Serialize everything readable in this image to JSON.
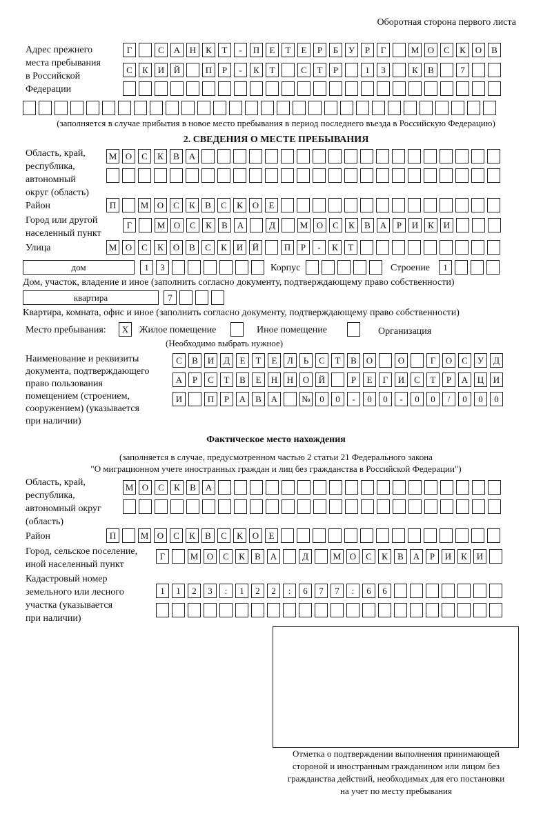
{
  "header": "Оборотная сторона первого листа",
  "prev_address": {
    "label": [
      "Адрес прежнего",
      "места пребывания",
      "в Российской",
      "Федерации"
    ],
    "rows": [
      "Г САНКТ-ПЕТЕРБУРГ МОСКОВ",
      "СКИЙ ПР-КТ СТР 13 КВ 7  ",
      "                        ",
      "                              "
    ],
    "note": "(заполняется в случае прибытия в новое место пребывания в период последнего въезда в Российскую Федерацию)"
  },
  "section2": {
    "title": "2. СВЕДЕНИЯ О МЕСТЕ ПРЕБЫВАНИЯ",
    "region_label": [
      "Область, край,",
      "республика,",
      "автономный",
      "округ (область)"
    ],
    "region_rows": [
      "МОСКВА                   ",
      "                         "
    ],
    "district_label": "Район",
    "district_row": "П МОСКВСКОЕ              ",
    "city_label": [
      "Город или другой",
      "населенный пункт"
    ],
    "city_row": "Г МОСКВА Д МОСКВАРИКИ   ",
    "street_label": "Улица",
    "street_row": "МОСКОВСКИЙ ПР-КТ         ",
    "house_type": "дом",
    "house_row": "13      ",
    "korpus_label": "Корпус",
    "korpus_row": "     ",
    "building_label": "Строение",
    "building_row": "1   ",
    "house_caption": "Дом, участок, владение и иное (заполнить согласно документу, подтверждающему право собственности)",
    "flat_type": "квартира",
    "flat_row": "7   ",
    "flat_caption": "Квартира, комната, офис и иное (заполнить согласно документу, подтверждающему право собственности)",
    "stay_label": "Место пребывания:",
    "stay_options": [
      {
        "label": "Жилое помещение",
        "mark": "X"
      },
      {
        "label": "Иное помещение",
        "mark": ""
      },
      {
        "label": "Организация",
        "mark": ""
      }
    ],
    "stay_note": "(Необходимо выбрать нужное)",
    "doc_label": [
      "Наименование и реквизиты",
      "документа, подтверждающего",
      "право пользования",
      "помещением (строением,",
      "сооружением) (указывается",
      "при наличии)"
    ],
    "doc_rows": [
      "СВИДЕТЕЛЬСТВО О ГОСУД",
      "АРСТВЕННОЙ РЕГИСТРАЦИ",
      "И ПРАВА №00-00-00/000"
    ]
  },
  "actual": {
    "title": "Фактическое место нахождения",
    "note": [
      "(заполняется в случае, предусмотренном частью 2 статьи 21 Федерального закона",
      "\"О миграционном учете иностранных граждан и лиц без гражданства в Российской Федерации\")"
    ],
    "region_label": [
      "Область, край,",
      "республика,",
      "автономный округ",
      "(область)"
    ],
    "region_rows": [
      "МОСКВА                  ",
      "                        "
    ],
    "district_label": "Район",
    "district_row": "П МОСКВСКОЕ              ",
    "city_label": [
      "Город, сельское поселение,",
      "иной населенный пункт"
    ],
    "city_row": "Г МОСКВА Д МОСКВАРИКИ ",
    "cadastre_label": [
      "Кадастровый номер",
      "земельного или лесного",
      "участка (указывается",
      "при наличии)"
    ],
    "cadastre_rows": [
      "1123:122:677:66       ",
      "                      "
    ]
  },
  "stamp_caption": [
    "Отметка о подтверждении выполнения принимающей",
    "стороной и иностранным гражданином или лицом без",
    "гражданства действий, необходимых для его постановки",
    "на учет по месту пребывания"
  ]
}
